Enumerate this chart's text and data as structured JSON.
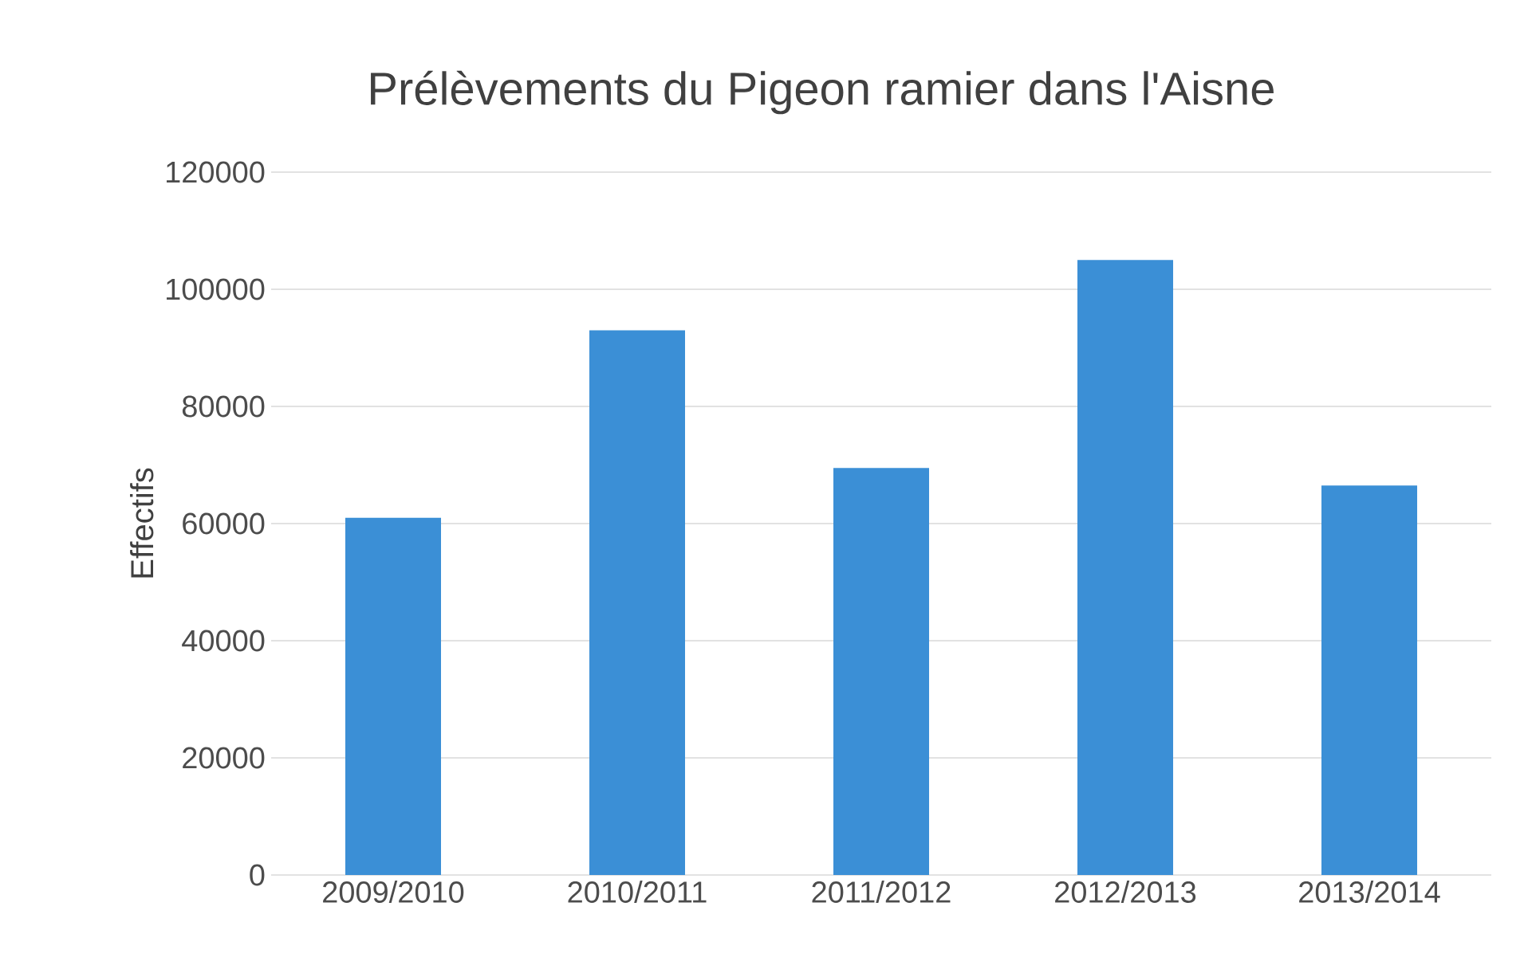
{
  "chart_data": {
    "type": "bar",
    "title": "Prélèvements du Pigeon ramier dans l'Aisne",
    "ylabel": "Effectifs",
    "categories": [
      "2009/2010",
      "2010/2011",
      "2011/2012",
      "2012/2013",
      "2013/2014"
    ],
    "values": [
      61000,
      93000,
      69500,
      105000,
      66500
    ],
    "color": "#3b8fd6",
    "ylim": [
      0,
      120000
    ],
    "yticks": [
      0,
      20000,
      40000,
      60000,
      80000,
      100000,
      120000
    ],
    "grid": "y"
  }
}
